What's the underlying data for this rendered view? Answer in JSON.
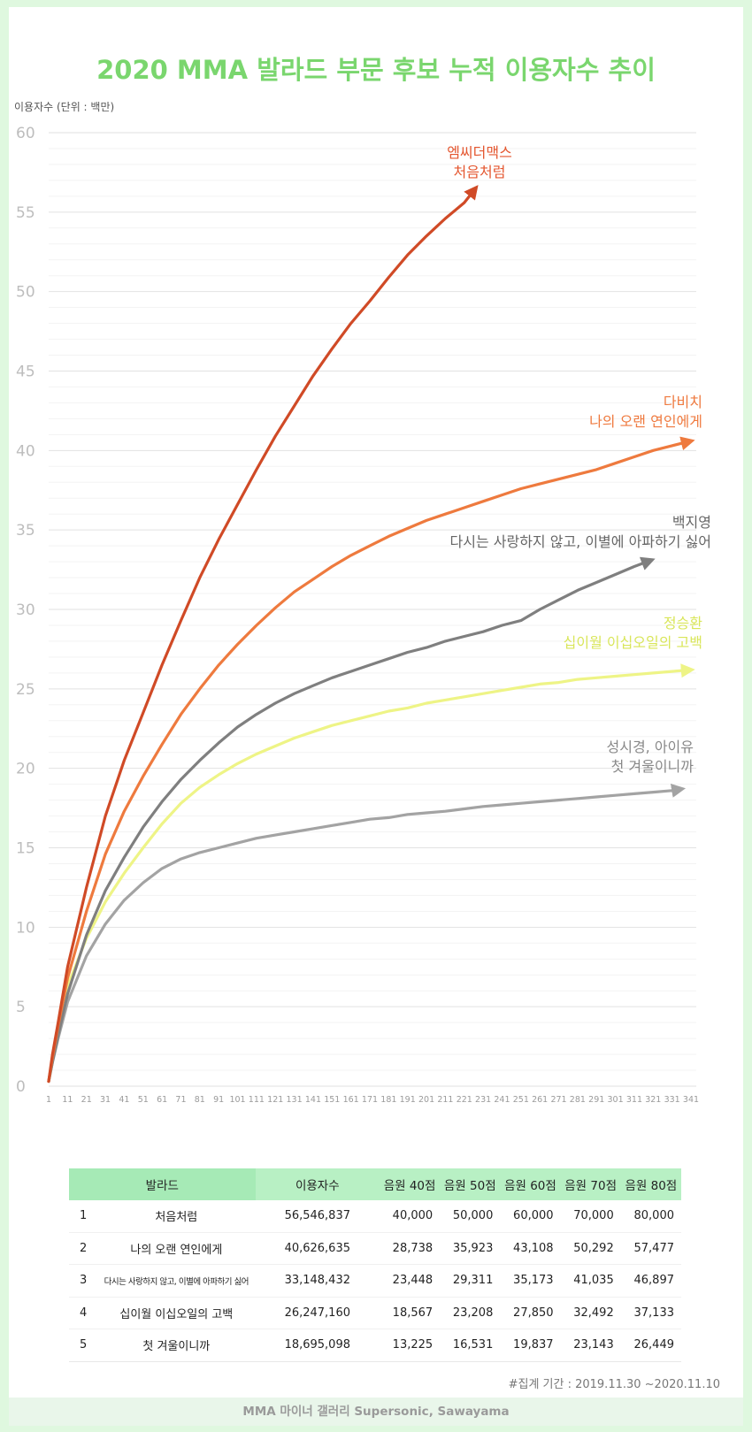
{
  "title": "2020 MMA 발라드 부문 후보 누적 이용자수 추이",
  "y_unit_label": "이용자수 (단위 : 백만)",
  "chart_data": {
    "type": "line",
    "title": "2020 MMA 발라드 부문 후보 누적 이용자수 추이",
    "ylabel": "이용자수 (단위 : 백만)",
    "xlabel": "",
    "xlim": [
      1,
      341
    ],
    "ylim": [
      0,
      60
    ],
    "yticks": [
      0,
      5,
      10,
      15,
      20,
      25,
      30,
      35,
      40,
      45,
      50,
      55,
      60
    ],
    "xticks": [
      1,
      11,
      21,
      31,
      41,
      51,
      61,
      71,
      81,
      91,
      101,
      111,
      121,
      131,
      141,
      151,
      161,
      171,
      181,
      191,
      201,
      211,
      221,
      231,
      241,
      251,
      261,
      271,
      281,
      291,
      301,
      311,
      321,
      331,
      341
    ],
    "grid": true,
    "series": [
      {
        "artist": "엠씨더맥스",
        "song": "처음처럼",
        "color": "#d04a26",
        "points": [
          [
            1,
            0.3
          ],
          [
            3,
            2
          ],
          [
            6,
            4
          ],
          [
            11,
            7.5
          ],
          [
            21,
            12.5
          ],
          [
            31,
            17
          ],
          [
            41,
            20.5
          ],
          [
            51,
            23.5
          ],
          [
            61,
            26.5
          ],
          [
            71,
            29.3
          ],
          [
            81,
            32
          ],
          [
            91,
            34.4
          ],
          [
            101,
            36.6
          ],
          [
            111,
            38.8
          ],
          [
            121,
            40.9
          ],
          [
            131,
            42.8
          ],
          [
            141,
            44.7
          ],
          [
            151,
            46.4
          ],
          [
            161,
            48
          ],
          [
            171,
            49.4
          ],
          [
            181,
            50.9
          ],
          [
            191,
            52.3
          ],
          [
            201,
            53.5
          ],
          [
            211,
            54.6
          ],
          [
            221,
            55.6
          ],
          [
            227,
            56.5
          ]
        ]
      },
      {
        "artist": "다비치",
        "song": "나의 오랜 연인에게",
        "color": "#ee7a3e",
        "points": [
          [
            1,
            0.3
          ],
          [
            3,
            1.8
          ],
          [
            6,
            3.8
          ],
          [
            11,
            6.8
          ],
          [
            21,
            11
          ],
          [
            31,
            14.6
          ],
          [
            41,
            17.3
          ],
          [
            51,
            19.5
          ],
          [
            61,
            21.5
          ],
          [
            71,
            23.4
          ],
          [
            81,
            25
          ],
          [
            91,
            26.5
          ],
          [
            101,
            27.8
          ],
          [
            111,
            29
          ],
          [
            121,
            30.1
          ],
          [
            131,
            31.1
          ],
          [
            141,
            31.9
          ],
          [
            151,
            32.7
          ],
          [
            161,
            33.4
          ],
          [
            171,
            34
          ],
          [
            181,
            34.6
          ],
          [
            191,
            35.1
          ],
          [
            201,
            35.6
          ],
          [
            211,
            36
          ],
          [
            221,
            36.4
          ],
          [
            231,
            36.8
          ],
          [
            241,
            37.2
          ],
          [
            251,
            37.6
          ],
          [
            261,
            37.9
          ],
          [
            271,
            38.2
          ],
          [
            281,
            38.5
          ],
          [
            291,
            38.8
          ],
          [
            301,
            39.2
          ],
          [
            311,
            39.6
          ],
          [
            321,
            40
          ],
          [
            331,
            40.3
          ],
          [
            341,
            40.6
          ]
        ]
      },
      {
        "artist": "백지영",
        "song": "다시는 사랑하지 않고, 이별에 아파하기 싫어",
        "color": "#7f7f7f",
        "points": [
          [
            1,
            0.3
          ],
          [
            3,
            1.5
          ],
          [
            6,
            3.2
          ],
          [
            11,
            5.8
          ],
          [
            21,
            9.5
          ],
          [
            31,
            12.3
          ],
          [
            41,
            14.4
          ],
          [
            51,
            16.3
          ],
          [
            61,
            17.9
          ],
          [
            71,
            19.3
          ],
          [
            81,
            20.5
          ],
          [
            91,
            21.6
          ],
          [
            101,
            22.6
          ],
          [
            111,
            23.4
          ],
          [
            121,
            24.1
          ],
          [
            131,
            24.7
          ],
          [
            141,
            25.2
          ],
          [
            151,
            25.7
          ],
          [
            161,
            26.1
          ],
          [
            171,
            26.5
          ],
          [
            181,
            26.9
          ],
          [
            191,
            27.3
          ],
          [
            201,
            27.6
          ],
          [
            211,
            28
          ],
          [
            221,
            28.3
          ],
          [
            231,
            28.6
          ],
          [
            241,
            29
          ],
          [
            251,
            29.3
          ],
          [
            261,
            30
          ],
          [
            271,
            30.6
          ],
          [
            281,
            31.2
          ],
          [
            291,
            31.7
          ],
          [
            301,
            32.2
          ],
          [
            311,
            32.7
          ],
          [
            320,
            33.1
          ]
        ]
      },
      {
        "artist": "정승환",
        "song": "십이월 이십오일의 고백",
        "color": "#eef486",
        "points": [
          [
            1,
            0.3
          ],
          [
            3,
            1.6
          ],
          [
            6,
            3.5
          ],
          [
            11,
            6.3
          ],
          [
            21,
            9.3
          ],
          [
            31,
            11.6
          ],
          [
            41,
            13.4
          ],
          [
            51,
            15
          ],
          [
            61,
            16.5
          ],
          [
            71,
            17.8
          ],
          [
            81,
            18.8
          ],
          [
            91,
            19.6
          ],
          [
            101,
            20.3
          ],
          [
            111,
            20.9
          ],
          [
            121,
            21.4
          ],
          [
            131,
            21.9
          ],
          [
            141,
            22.3
          ],
          [
            151,
            22.7
          ],
          [
            161,
            23
          ],
          [
            171,
            23.3
          ],
          [
            181,
            23.6
          ],
          [
            191,
            23.8
          ],
          [
            201,
            24.1
          ],
          [
            211,
            24.3
          ],
          [
            221,
            24.5
          ],
          [
            231,
            24.7
          ],
          [
            241,
            24.9
          ],
          [
            251,
            25.1
          ],
          [
            261,
            25.3
          ],
          [
            271,
            25.4
          ],
          [
            281,
            25.6
          ],
          [
            291,
            25.7
          ],
          [
            301,
            25.8
          ],
          [
            311,
            25.9
          ],
          [
            321,
            26
          ],
          [
            331,
            26.1
          ],
          [
            341,
            26.2
          ]
        ]
      },
      {
        "artist": "성시경, 아이유",
        "song": "첫 겨울이니까",
        "color": "#a3a3a3",
        "points": [
          [
            1,
            0.3
          ],
          [
            3,
            1.5
          ],
          [
            6,
            3
          ],
          [
            11,
            5.3
          ],
          [
            21,
            8.2
          ],
          [
            31,
            10.2
          ],
          [
            41,
            11.7
          ],
          [
            51,
            12.8
          ],
          [
            61,
            13.7
          ],
          [
            71,
            14.3
          ],
          [
            81,
            14.7
          ],
          [
            91,
            15
          ],
          [
            101,
            15.3
          ],
          [
            111,
            15.6
          ],
          [
            121,
            15.8
          ],
          [
            131,
            16
          ],
          [
            141,
            16.2
          ],
          [
            151,
            16.4
          ],
          [
            161,
            16.6
          ],
          [
            171,
            16.8
          ],
          [
            181,
            16.9
          ],
          [
            191,
            17.1
          ],
          [
            201,
            17.2
          ],
          [
            211,
            17.3
          ],
          [
            221,
            17.45
          ],
          [
            231,
            17.6
          ],
          [
            241,
            17.7
          ],
          [
            251,
            17.8
          ],
          [
            261,
            17.9
          ],
          [
            271,
            18
          ],
          [
            281,
            18.1
          ],
          [
            291,
            18.2
          ],
          [
            301,
            18.3
          ],
          [
            311,
            18.4
          ],
          [
            321,
            18.5
          ],
          [
            331,
            18.6
          ],
          [
            336,
            18.7
          ]
        ]
      }
    ]
  },
  "labels": [
    {
      "artist": "엠씨더맥스",
      "song": "처음처럼",
      "color": "#e4562f"
    },
    {
      "artist": "다비치",
      "song": "나의 오랜 연인에게",
      "color": "#ef7a3f"
    },
    {
      "artist": "백지영",
      "song": "다시는 사랑하지 않고, 이별에 아파하기 싫어",
      "color": "#666666"
    },
    {
      "artist": "정승환",
      "song": "십이월 이십오일의 고백",
      "color": "#d9e65a"
    },
    {
      "artist": "성시경, 아이유",
      "song": "첫 겨울이니까",
      "color": "#888888"
    }
  ],
  "table": {
    "headers": [
      "발라드",
      "이용자수",
      "음원 40점",
      "음원 50점",
      "음원 60점",
      "음원 70점",
      "음원 80점"
    ],
    "rows": [
      {
        "rank": "1",
        "name": "처음처럼",
        "users": "56,546,837",
        "s40": "40,000",
        "s50": "50,000",
        "s60": "60,000",
        "s70": "70,000",
        "s80": "80,000"
      },
      {
        "rank": "2",
        "name": "나의 오랜 연인에게",
        "users": "40,626,635",
        "s40": "28,738",
        "s50": "35,923",
        "s60": "43,108",
        "s70": "50,292",
        "s80": "57,477"
      },
      {
        "rank": "3",
        "name": "다시는 사랑하지 않고, 이별에 아파하기 싫어",
        "users": "33,148,432",
        "s40": "23,448",
        "s50": "29,311",
        "s60": "35,173",
        "s70": "41,035",
        "s80": "46,897"
      },
      {
        "rank": "4",
        "name": "십이월 이십오일의 고백",
        "users": "26,247,160",
        "s40": "18,567",
        "s50": "23,208",
        "s60": "27,850",
        "s70": "32,492",
        "s80": "37,133"
      },
      {
        "rank": "5",
        "name": "첫 겨울이니까",
        "users": "18,695,098",
        "s40": "13,225",
        "s50": "16,531",
        "s60": "19,837",
        "s70": "23,143",
        "s80": "26,449"
      }
    ]
  },
  "footnote": "#집계 기간 : 2019.11.30 ~2020.11.10",
  "footer": "MMA 마이너 갤러리 Supersonic, Sawayama"
}
